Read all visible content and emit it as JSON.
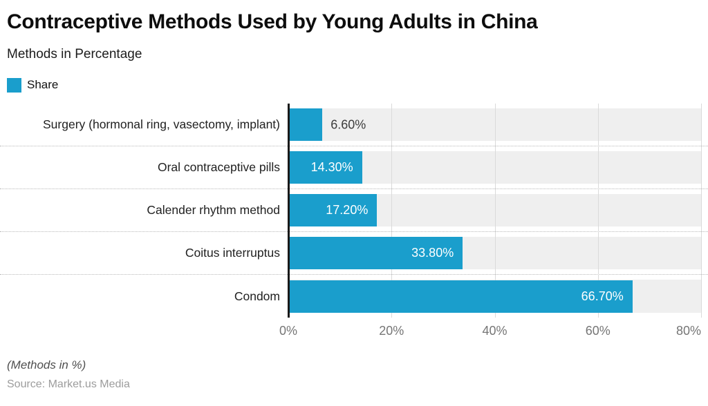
{
  "header": {
    "title": "Contraceptive Methods Used by Young Adults in China",
    "subtitle": "Methods in Percentage"
  },
  "legend": {
    "label": "Share"
  },
  "chart_data": {
    "type": "bar",
    "orientation": "horizontal",
    "title": "Contraceptive Methods Used by Young Adults in China",
    "subtitle": "Methods in Percentage",
    "categories": [
      "Surgery (hormonal ring, vasectomy, implant)",
      "Oral contraceptive pills",
      "Calender rhythm method",
      "Coitus interruptus",
      "Condom"
    ],
    "series": [
      {
        "name": "Share",
        "values": [
          6.6,
          14.3,
          17.2,
          33.8,
          66.7
        ],
        "labels": [
          "6.60%",
          "14.30%",
          "17.20%",
          "33.80%",
          "66.70%"
        ]
      }
    ],
    "xlim": [
      0,
      80
    ],
    "x_ticks": [
      0,
      20,
      40,
      60,
      80
    ],
    "x_tick_labels": [
      "0%",
      "20%",
      "40%",
      "60%",
      "80%"
    ],
    "grid": "vertical",
    "legend_position": "top-left"
  },
  "colors": {
    "bar": "#1a9ecc",
    "band": "#efefef",
    "gridline": "#dadada",
    "axis_line": "#191919",
    "tick_label": "#757575"
  },
  "footer": {
    "note": "(Methods in %)",
    "source": "Source: Market.us Media"
  }
}
